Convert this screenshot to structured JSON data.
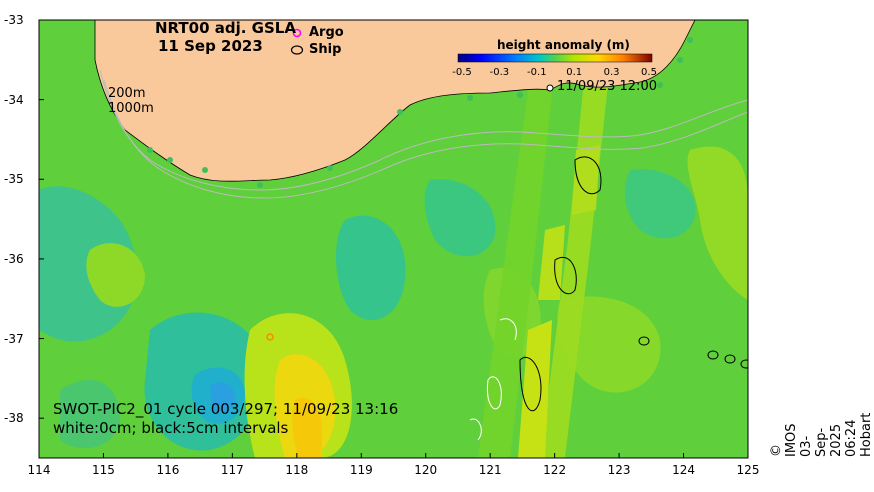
{
  "title": {
    "line1": "NRT00 adj. GSLA",
    "line2": "11 Sep 2023"
  },
  "legend": {
    "argo": "Argo",
    "ship": "Ship",
    "argo_color": "#ff00ff",
    "ship_color": "#000000"
  },
  "colorbar": {
    "label": "height anomaly (m)",
    "ticks": [
      "-0.5",
      "-0.3",
      "-0.1",
      "0.1",
      "0.3",
      "0.5"
    ],
    "colors": [
      "#00007f",
      "#0000ff",
      "#007fff",
      "#00c8c8",
      "#28d278",
      "#64dc14",
      "#b4e600",
      "#ffd700",
      "#ff8000",
      "#e60000",
      "#7f0000"
    ]
  },
  "isobaths": [
    "200m",
    "1000m"
  ],
  "track_time": "11/09/23 12:00",
  "swot": {
    "line1": "SWOT-PIC2_01 cycle 003/297; 11/09/23 13:16",
    "line2": "white:0cm; black:5cm intervals"
  },
  "credit": "© IMOS 03-Sep-2025 06:24 Hobart",
  "axes": {
    "x_ticks": [
      "114",
      "115",
      "116",
      "117",
      "118",
      "119",
      "120",
      "121",
      "122",
      "123",
      "124",
      "125"
    ],
    "y_ticks": [
      "-33",
      "-34",
      "-35",
      "-36",
      "-37",
      "-38"
    ],
    "lon_range": [
      114,
      125
    ],
    "lat_range": [
      -38.5,
      -33
    ]
  },
  "colors": {
    "land": "#f9c89b",
    "background_field": "#5fcf3c"
  }
}
